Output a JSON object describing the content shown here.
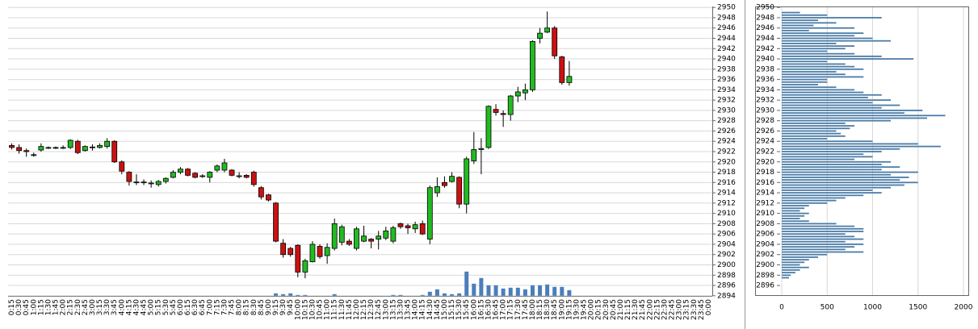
{
  "chart_data": [
    {
      "type": "candlestick",
      "categories": [
        "0:15",
        "0:30",
        "0:45",
        "1:00",
        "1:15",
        "1:30",
        "1:45",
        "2:00",
        "2:15",
        "2:30",
        "2:45",
        "3:00",
        "3:15",
        "3:30",
        "3:45",
        "4:00",
        "4:15",
        "4:30",
        "4:45",
        "5:00",
        "5:15",
        "5:30",
        "5:45",
        "6:00",
        "6:15",
        "6:30",
        "6:45",
        "7:00",
        "7:15",
        "7:30",
        "7:45",
        "8:00",
        "8:15",
        "8:30",
        "8:45",
        "9:00",
        "9:15",
        "9:30",
        "9:45",
        "10:00",
        "10:15",
        "10:30",
        "10:45",
        "11:00",
        "11:15",
        "11:30",
        "11:45",
        "12:00",
        "12:15",
        "12:30",
        "12:45",
        "13:00",
        "13:15",
        "13:30",
        "13:45",
        "14:00",
        "14:15",
        "14:30",
        "14:45",
        "15:00",
        "15:15",
        "15:30",
        "15:45",
        "16:00",
        "16:15",
        "16:30",
        "16:45",
        "17:00",
        "17:15",
        "17:30",
        "17:45",
        "18:00",
        "18:15",
        "18:30",
        "18:45",
        "19:00",
        "19:15",
        "19:30",
        "19:45",
        "20:00",
        "20:15",
        "20:30",
        "20:45",
        "21:00",
        "21:15",
        "21:30",
        "21:45",
        "22:00",
        "22:15",
        "22:30",
        "22:45",
        "23:00",
        "23:15",
        "23:30",
        "23:45",
        "0:00"
      ],
      "open": [
        2923.2,
        2922.8,
        2922.2,
        2921.4,
        2922.3,
        2922.8,
        2922.8,
        2922.8,
        2922.8,
        2924,
        2922.2,
        2922.9,
        2922.8,
        2923,
        2924,
        2920,
        2918,
        2916.1,
        2916.1,
        2915.9,
        2915.6,
        2916.2,
        2917,
        2918,
        2918.6,
        2917.8,
        2917.3,
        2917,
        2918.4,
        2918.4,
        2918.4,
        2917.3,
        2917.4,
        2918,
        2915,
        2913.6,
        2912,
        2904.2,
        2903.2,
        2903.8,
        2898.6,
        2900.6,
        2903.6,
        2901.8,
        2903.2,
        2904.4,
        2904.6,
        2903.2,
        2904.6,
        2905,
        2905,
        2905.2,
        2904.6,
        2908,
        2907.6,
        2907,
        2908,
        2905,
        2914,
        2916,
        2916.2,
        2917,
        2911.8,
        2920.2,
        2922.4,
        2922.8,
        2930.2,
        2929.4,
        2929.2,
        2932.8,
        2933.4,
        2934,
        2944,
        2945.2,
        2946,
        2940.4,
        2935.4,
        null,
        null,
        null,
        null,
        null,
        null,
        null,
        null,
        null,
        null,
        null,
        null,
        null,
        null,
        null,
        null,
        null,
        null,
        null
      ],
      "high": [
        2923.6,
        2923.4,
        2922.6,
        2921.8,
        2923.6,
        2923,
        2923,
        2923.2,
        2924.4,
        2924.3,
        2923.2,
        2923.4,
        2923.6,
        2924.6,
        2924.2,
        2920.3,
        2918.2,
        2917.6,
        2916.6,
        2916.4,
        2916.5,
        2917,
        2918.4,
        2919,
        2918.8,
        2918,
        2917.6,
        2918.2,
        2919.5,
        2920.6,
        2918.6,
        2918,
        2917.6,
        2918.3,
        2915.3,
        2913.8,
        2912.2,
        2905,
        2903.5,
        2904,
        2901.2,
        2904.6,
        2904,
        2904.2,
        2909,
        2907.8,
        2905,
        2907.4,
        2907.6,
        2905.2,
        2906.6,
        2907.4,
        2907.6,
        2908.2,
        2908,
        2908.4,
        2908.6,
        2915.4,
        2917,
        2917.2,
        2918,
        2917.2,
        2921,
        2925.8,
        2924.6,
        2931,
        2931.2,
        2930,
        2933,
        2934.6,
        2935.2,
        2943.6,
        2946,
        2949.2,
        2946.4,
        2940.6,
        2939.6,
        null,
        null,
        null,
        null,
        null,
        null,
        null,
        null,
        null,
        null,
        null,
        null,
        null,
        null,
        null,
        null,
        null,
        null,
        null
      ],
      "low": [
        2922.4,
        2921.6,
        2921,
        2921,
        2922,
        2922.5,
        2922.5,
        2922.5,
        2922.5,
        2921.5,
        2922,
        2922.2,
        2922.6,
        2922.6,
        2919.8,
        2917.6,
        2915.4,
        2915.5,
        2915.5,
        2915,
        2915.2,
        2915.8,
        2916.8,
        2917.6,
        2917.2,
        2916.8,
        2916.9,
        2916,
        2918,
        2918,
        2917.2,
        2916.8,
        2916.8,
        2915.2,
        2912.7,
        2912.3,
        2904.4,
        2901.4,
        2901.6,
        2897.6,
        2897.4,
        2900.5,
        2901.2,
        2900.2,
        2902.8,
        2903.8,
        2903.7,
        2902.8,
        2904.4,
        2903.2,
        2903,
        2904.8,
        2904.2,
        2907,
        2906,
        2906.2,
        2905.8,
        2904,
        2913.2,
        2915,
        2916,
        2911,
        2910,
        2919.6,
        2917.6,
        2922.5,
        2929,
        2926.8,
        2928,
        2931.6,
        2932,
        2933.6,
        2943,
        2945,
        2940,
        2935,
        2934.8,
        null,
        null,
        null,
        null,
        null,
        null,
        null,
        null,
        null,
        null,
        null,
        null,
        null,
        null,
        null,
        null,
        null,
        null,
        null
      ],
      "close": [
        2922.8,
        2922.2,
        2922,
        2921.4,
        2923,
        2922.8,
        2922.8,
        2922.8,
        2924.2,
        2921.8,
        2923,
        2922.9,
        2923.2,
        2924,
        2920,
        2918.2,
        2916.2,
        2916.1,
        2916.1,
        2915.9,
        2916.2,
        2916.8,
        2918,
        2918.6,
        2917.4,
        2917,
        2917.3,
        2918,
        2919.2,
        2919.8,
        2917.4,
        2917.3,
        2917,
        2915.6,
        2913.2,
        2912.6,
        2904.6,
        2902,
        2902,
        2898.6,
        2900.8,
        2904,
        2901.6,
        2903.4,
        2908,
        2907.4,
        2904,
        2907,
        2905.6,
        2904.6,
        2905.6,
        2906.6,
        2907.2,
        2907.4,
        2907.2,
        2907.8,
        2906,
        2915,
        2915.2,
        2915.4,
        2917.2,
        2911.8,
        2920.6,
        2922.4,
        2922.6,
        2930.8,
        2929.6,
        2929.2,
        2932.8,
        2933.6,
        2934,
        2943.4,
        2945,
        2946,
        2940.6,
        2935.4,
        2936.6,
        null,
        null,
        null,
        null,
        null,
        null,
        null,
        null,
        null,
        null,
        null,
        null,
        null,
        null,
        null,
        null,
        null,
        null,
        null
      ],
      "volume": [
        0,
        0,
        0,
        0,
        0,
        0,
        0,
        0,
        0,
        0,
        0,
        0,
        0,
        0,
        0,
        0,
        0,
        0,
        0,
        0,
        0,
        0,
        0,
        0,
        0,
        0,
        0,
        0,
        0,
        0,
        0,
        0,
        0,
        0,
        0,
        0,
        3,
        2,
        3,
        1,
        1,
        0,
        0,
        0,
        2,
        0,
        0,
        0,
        0,
        0,
        0,
        0,
        1,
        1,
        0,
        0,
        1,
        5,
        8,
        3,
        2,
        3,
        30,
        15,
        22,
        13,
        13,
        9,
        10,
        10,
        8,
        13,
        13,
        14,
        11,
        11,
        7,
        null,
        null,
        null,
        null,
        null,
        null,
        null,
        null,
        null,
        null,
        null,
        null,
        null,
        null,
        null,
        null,
        null,
        null,
        null
      ],
      "up_color": "#22bb22",
      "down_color": "#cc1111",
      "volume_color": "#4a7ebb",
      "ylim": [
        2894,
        2950
      ],
      "yticks": [
        2894,
        2896,
        2898,
        2900,
        2902,
        2904,
        2906,
        2908,
        2910,
        2912,
        2914,
        2916,
        2918,
        2920,
        2922,
        2924,
        2926,
        2928,
        2930,
        2932,
        2934,
        2936,
        2938,
        2940,
        2942,
        2944,
        2946,
        2948,
        2950
      ],
      "grid": true
    },
    {
      "type": "hbar",
      "y": [
        2949,
        2948.5,
        2948,
        2947.5,
        2947,
        2946.5,
        2946,
        2945.5,
        2945,
        2944.5,
        2944,
        2943.5,
        2943,
        2942.5,
        2942,
        2941.5,
        2941,
        2940.5,
        2940,
        2939.5,
        2939,
        2938.5,
        2938,
        2937.5,
        2937,
        2936.5,
        2936,
        2935.5,
        2935,
        2934.5,
        2934,
        2933.5,
        2933,
        2932.5,
        2932,
        2931.5,
        2931,
        2930.5,
        2930,
        2929.5,
        2929,
        2928.5,
        2928,
        2927.5,
        2927,
        2926.5,
        2926,
        2925.5,
        2925,
        2924.5,
        2924,
        2923.5,
        2923,
        2922.5,
        2922,
        2921.5,
        2921,
        2920.5,
        2920,
        2919.5,
        2919,
        2918.5,
        2918,
        2917.5,
        2917,
        2916.5,
        2916,
        2915.5,
        2915,
        2914.5,
        2914,
        2913.5,
        2913,
        2912.5,
        2912,
        2911.5,
        2911,
        2910.5,
        2910,
        2909.5,
        2909,
        2908.5,
        2908,
        2907.5,
        2907,
        2906.5,
        2906,
        2905.5,
        2905,
        2904.5,
        2904,
        2903.5,
        2903,
        2902.5,
        2902,
        2901.5,
        2901,
        2900.5,
        2900,
        2899.5,
        2899,
        2898.5,
        2898,
        2897.5
      ],
      "values": [
        200,
        500,
        1100,
        400,
        600,
        350,
        800,
        300,
        900,
        800,
        1000,
        1200,
        600,
        800,
        700,
        500,
        800,
        1100,
        1450,
        500,
        700,
        800,
        900,
        600,
        700,
        900,
        500,
        500,
        400,
        600,
        800,
        900,
        1100,
        950,
        1200,
        1000,
        1300,
        1100,
        1550,
        1350,
        1800,
        1600,
        1200,
        700,
        800,
        750,
        600,
        650,
        700,
        500,
        1000,
        1500,
        1750,
        1300,
        1100,
        900,
        1000,
        800,
        1200,
        1100,
        1300,
        1100,
        1500,
        1200,
        1400,
        1300,
        1500,
        1350,
        1200,
        1000,
        1100,
        900,
        700,
        600,
        500,
        300,
        250,
        200,
        300,
        250,
        200,
        300,
        600,
        800,
        900,
        900,
        700,
        800,
        900,
        700,
        900,
        800,
        700,
        900,
        500,
        400,
        300,
        250,
        200,
        300,
        200,
        150,
        100,
        80
      ],
      "color": "#4a7ca8",
      "xlim": [
        0,
        2000
      ],
      "xticks": [
        0,
        500,
        1000,
        1500,
        2000
      ],
      "ylim": [
        2894,
        2950
      ],
      "yticks": [
        2896,
        2898,
        2900,
        2902,
        2904,
        2906,
        2908,
        2910,
        2912,
        2914,
        2916,
        2918,
        2920,
        2922,
        2924,
        2926,
        2928,
        2930,
        2932,
        2934,
        2936,
        2938,
        2940,
        2942,
        2944,
        2946,
        2948,
        2950
      ],
      "grid": true
    }
  ]
}
